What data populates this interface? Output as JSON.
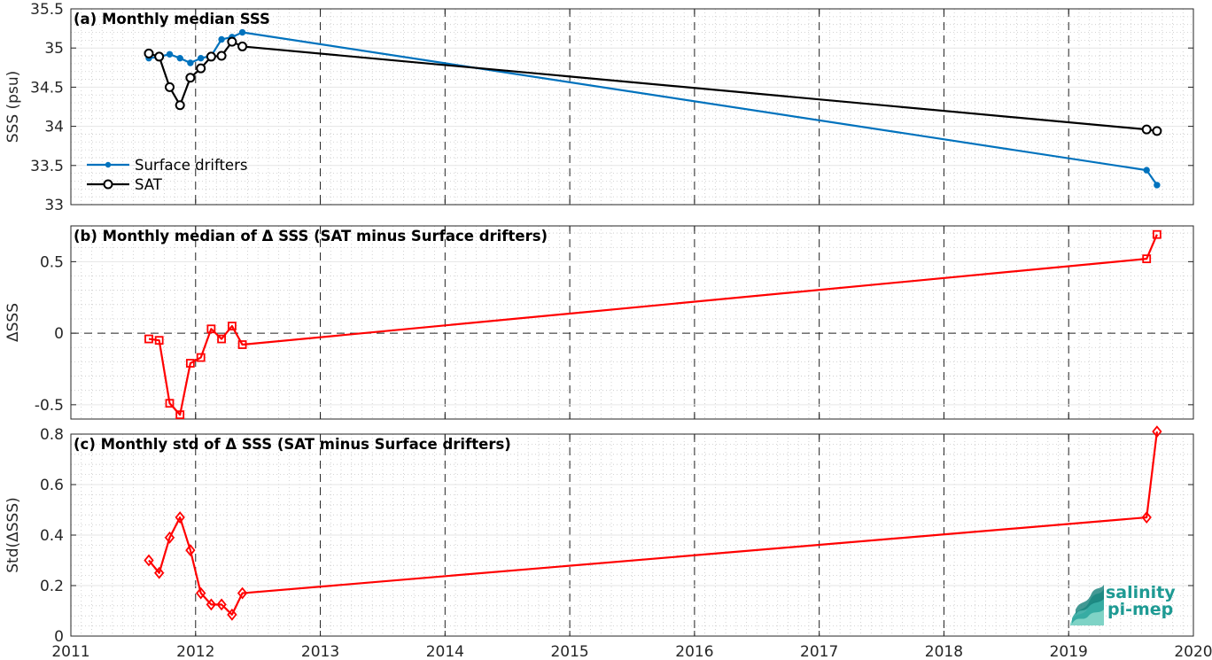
{
  "chart_data": [
    {
      "type": "line",
      "title": "(a) Monthly median SSS",
      "ylabel": "SSS (psu)",
      "xlim": [
        2011,
        2020
      ],
      "ylim": [
        33,
        35.5
      ],
      "yticks": [
        33,
        33.5,
        34,
        34.5,
        35,
        35.5
      ],
      "ytick_labels": [
        "33",
        "33.5",
        "34",
        "34.5",
        "35",
        "35.5"
      ],
      "legend": "bottom-left",
      "series": [
        {
          "name": "Surface drifters",
          "color": "#0072bd",
          "marker": "dot",
          "x": [
            2011.625,
            2011.708,
            2011.792,
            2011.875,
            2011.958,
            2012.042,
            2012.125,
            2012.208,
            2012.292,
            2012.375,
            2019.625,
            2019.708
          ],
          "y": [
            34.87,
            34.89,
            34.92,
            34.87,
            34.81,
            34.87,
            34.9,
            35.11,
            35.14,
            35.2,
            33.44,
            33.25
          ]
        },
        {
          "name": "SAT",
          "color": "#000000",
          "marker": "circle",
          "x": [
            2011.625,
            2011.708,
            2011.792,
            2011.875,
            2011.958,
            2012.042,
            2012.125,
            2012.208,
            2012.292,
            2012.375,
            2019.625,
            2019.708
          ],
          "y": [
            34.93,
            34.89,
            34.5,
            34.27,
            34.62,
            34.74,
            34.89,
            34.9,
            35.08,
            35.02,
            33.96,
            33.94
          ]
        }
      ]
    },
    {
      "type": "line",
      "title": "(b) Monthly median of Δ SSS (SAT minus Surface drifters)",
      "ylabel": "ΔSSS",
      "xlim": [
        2011,
        2020
      ],
      "ylim": [
        -0.6,
        0.75
      ],
      "yticks": [
        -0.5,
        0,
        0.5
      ],
      "ytick_labels": [
        "-0.5",
        "0",
        "0.5"
      ],
      "series": [
        {
          "color": "#ff0000",
          "marker": "square",
          "x": [
            2011.625,
            2011.708,
            2011.792,
            2011.875,
            2011.958,
            2012.042,
            2012.125,
            2012.208,
            2012.292,
            2012.375,
            2019.625,
            2019.708
          ],
          "y": [
            -0.04,
            -0.05,
            -0.49,
            -0.57,
            -0.21,
            -0.17,
            0.03,
            -0.04,
            0.05,
            -0.08,
            0.52,
            0.69
          ]
        }
      ]
    },
    {
      "type": "line",
      "title": "(c) Monthly std of Δ SSS (SAT minus Surface drifters)",
      "ylabel": "Std(ΔSSS)",
      "xlim": [
        2011,
        2020
      ],
      "ylim": [
        0,
        0.8
      ],
      "yticks": [
        0,
        0.2,
        0.4,
        0.6,
        0.8
      ],
      "ytick_labels": [
        "0",
        "0.2",
        "0.4",
        "0.6",
        "0.8"
      ],
      "xticks": [
        2011,
        2012,
        2013,
        2014,
        2015,
        2016,
        2017,
        2018,
        2019,
        2020
      ],
      "xtick_labels": [
        "2011",
        "2012",
        "2013",
        "2014",
        "2015",
        "2016",
        "2017",
        "2018",
        "2019",
        "2020"
      ],
      "series": [
        {
          "color": "#ff0000",
          "marker": "diamond",
          "x": [
            2011.625,
            2011.708,
            2011.792,
            2011.875,
            2011.958,
            2012.042,
            2012.125,
            2012.208,
            2012.292,
            2012.375,
            2019.625,
            2019.708
          ],
          "y": [
            0.3,
            0.25,
            0.39,
            0.47,
            0.34,
            0.17,
            0.125,
            0.125,
            0.085,
            0.17,
            0.47,
            0.81
          ]
        }
      ]
    }
  ],
  "logo": {
    "line1": "salinity",
    "line2": "pi-mep"
  }
}
